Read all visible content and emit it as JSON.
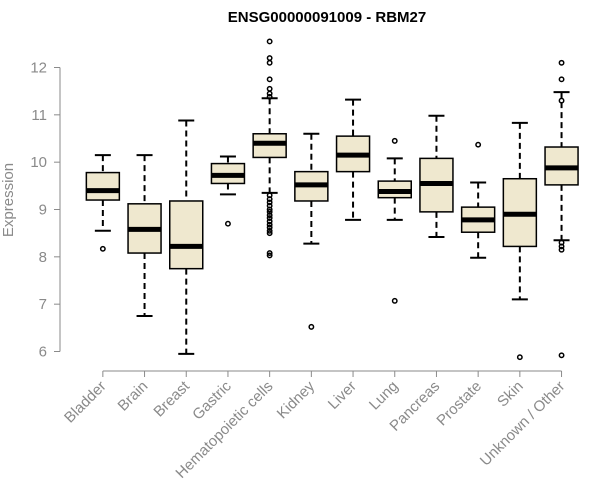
{
  "chart_data": {
    "type": "box",
    "title": "ENSG00000091009 - RBM27",
    "ylabel": "Expression",
    "xlabel": "",
    "ylim": [
      5.7,
      12.7
    ],
    "yticks": [
      6,
      7,
      8,
      9,
      10,
      11,
      12
    ],
    "box_fill": "#efe8cf",
    "box_stroke": "#000000",
    "axis_color": "#8a8a8a",
    "categories": [
      "Bladder",
      "Brain",
      "Breast",
      "Gastric",
      "Hematopoietic cells",
      "Kidney",
      "Liver",
      "Lung",
      "Pancreas",
      "Prostate",
      "Skin",
      "Unknown / Other"
    ],
    "boxes": [
      {
        "whisker_low": 8.55,
        "q1": 9.2,
        "median": 9.4,
        "q3": 9.78,
        "whisker_high": 10.15,
        "outliers": [
          8.17
        ]
      },
      {
        "whisker_low": 6.75,
        "q1": 8.08,
        "median": 8.58,
        "q3": 9.12,
        "whisker_high": 10.15,
        "outliers": []
      },
      {
        "whisker_low": 5.95,
        "q1": 7.75,
        "median": 8.22,
        "q3": 9.18,
        "whisker_high": 10.88,
        "outliers": []
      },
      {
        "whisker_low": 9.32,
        "q1": 9.55,
        "median": 9.72,
        "q3": 9.97,
        "whisker_high": 10.12,
        "outliers": [
          8.7
        ]
      },
      {
        "whisker_low": 9.35,
        "q1": 10.1,
        "median": 10.4,
        "q3": 10.6,
        "whisker_high": 11.35,
        "outliers": [
          12.55,
          12.2,
          12.1,
          11.75,
          11.55,
          11.45,
          11.38,
          9.3,
          9.22,
          9.15,
          9.08,
          9.0,
          8.95,
          8.88,
          8.82,
          8.75,
          8.68,
          8.62,
          8.55,
          8.5,
          8.08,
          8.03
        ]
      },
      {
        "whisker_low": 8.28,
        "q1": 9.18,
        "median": 9.52,
        "q3": 9.8,
        "whisker_high": 10.6,
        "outliers": [
          6.52
        ]
      },
      {
        "whisker_low": 8.78,
        "q1": 9.8,
        "median": 10.15,
        "q3": 10.55,
        "whisker_high": 11.32,
        "outliers": []
      },
      {
        "whisker_low": 8.78,
        "q1": 9.25,
        "median": 9.38,
        "q3": 9.6,
        "whisker_high": 10.08,
        "outliers": [
          10.45,
          7.07
        ]
      },
      {
        "whisker_low": 8.42,
        "q1": 8.95,
        "median": 9.55,
        "q3": 10.08,
        "whisker_high": 10.98,
        "outliers": []
      },
      {
        "whisker_low": 7.98,
        "q1": 8.52,
        "median": 8.78,
        "q3": 9.05,
        "whisker_high": 9.57,
        "outliers": [
          10.37
        ]
      },
      {
        "whisker_low": 7.1,
        "q1": 8.22,
        "median": 8.9,
        "q3": 9.65,
        "whisker_high": 10.83,
        "outliers": [
          5.88
        ]
      },
      {
        "whisker_low": 8.35,
        "q1": 9.52,
        "median": 9.88,
        "q3": 10.32,
        "whisker_high": 11.48,
        "outliers": [
          12.1,
          11.75,
          11.3,
          8.3,
          8.22,
          8.15,
          5.92
        ]
      }
    ]
  }
}
